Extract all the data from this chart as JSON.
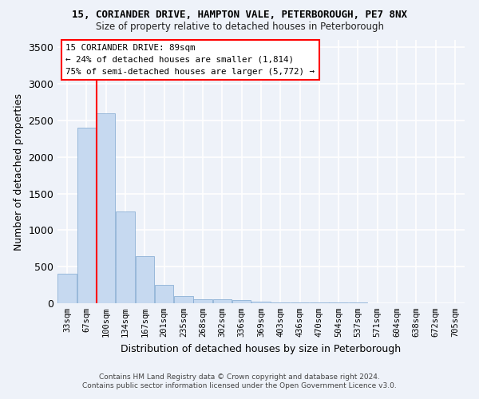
{
  "title1": "15, CORIANDER DRIVE, HAMPTON VALE, PETERBOROUGH, PE7 8NX",
  "title2": "Size of property relative to detached houses in Peterborough",
  "xlabel": "Distribution of detached houses by size in Peterborough",
  "ylabel": "Number of detached properties",
  "categories": [
    "33sqm",
    "67sqm",
    "100sqm",
    "134sqm",
    "167sqm",
    "201sqm",
    "235sqm",
    "268sqm",
    "302sqm",
    "336sqm",
    "369sqm",
    "403sqm",
    "436sqm",
    "470sqm",
    "504sqm",
    "537sqm",
    "571sqm",
    "604sqm",
    "638sqm",
    "672sqm",
    "705sqm"
  ],
  "values": [
    400,
    2400,
    2600,
    1250,
    640,
    250,
    100,
    55,
    55,
    40,
    20,
    15,
    10,
    10,
    10,
    8,
    5,
    5,
    5,
    5,
    3
  ],
  "bar_color": "#c6d9f0",
  "bar_edge_color": "#7ea6d0",
  "red_line_x": 1.5,
  "annotation_title": "15 CORIANDER DRIVE: 89sqm",
  "annotation_line1": "← 24% of detached houses are smaller (1,814)",
  "annotation_line2": "75% of semi-detached houses are larger (5,772) →",
  "ylim": [
    0,
    3600
  ],
  "yticks": [
    0,
    500,
    1000,
    1500,
    2000,
    2500,
    3000,
    3500
  ],
  "background_color": "#eef2f9",
  "grid_color": "#ffffff",
  "footer1": "Contains HM Land Registry data © Crown copyright and database right 2024.",
  "footer2": "Contains public sector information licensed under the Open Government Licence v3.0."
}
